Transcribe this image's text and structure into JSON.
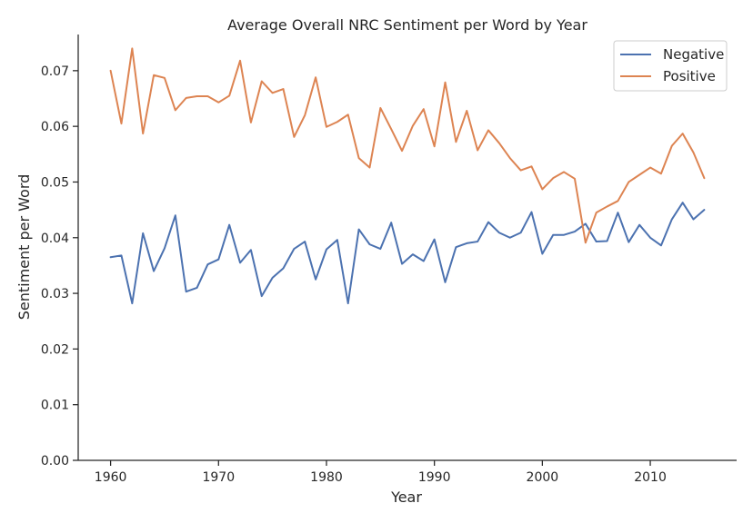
{
  "chart_data": {
    "type": "line",
    "title": "Average Overall NRC Sentiment per Word by Year",
    "xlabel": "Year",
    "ylabel": "Sentiment per Word",
    "xlim": [
      1957,
      2018
    ],
    "ylim": [
      0,
      0.0765
    ],
    "xticks": [
      1960,
      1970,
      1980,
      1990,
      2000,
      2010
    ],
    "yticks": [
      "0.00",
      "0.01",
      "0.02",
      "0.03",
      "0.04",
      "0.05",
      "0.06",
      "0.07"
    ],
    "grid": false,
    "legend_position": "top-right",
    "x": [
      1960,
      1961,
      1962,
      1963,
      1964,
      1965,
      1966,
      1967,
      1968,
      1969,
      1970,
      1971,
      1972,
      1973,
      1974,
      1975,
      1976,
      1977,
      1978,
      1979,
      1980,
      1981,
      1982,
      1983,
      1984,
      1985,
      1986,
      1987,
      1988,
      1989,
      1990,
      1991,
      1992,
      1993,
      1994,
      1995,
      1996,
      1997,
      1998,
      1999,
      2000,
      2001,
      2002,
      2003,
      2004,
      2005,
      2006,
      2007,
      2008,
      2009,
      2010,
      2011,
      2012,
      2013,
      2014,
      2015
    ],
    "series": [
      {
        "name": "Negative",
        "color": "#4c72b0",
        "values": [
          0.0365,
          0.0368,
          0.0282,
          0.0408,
          0.034,
          0.0381,
          0.044,
          0.0303,
          0.031,
          0.0352,
          0.0361,
          0.0423,
          0.0355,
          0.0378,
          0.0295,
          0.0328,
          0.0345,
          0.038,
          0.0393,
          0.0325,
          0.0379,
          0.0396,
          0.0282,
          0.0415,
          0.0388,
          0.038,
          0.0427,
          0.0353,
          0.037,
          0.0358,
          0.0397,
          0.032,
          0.0383,
          0.039,
          0.0393,
          0.0428,
          0.0409,
          0.04,
          0.0409,
          0.0446,
          0.0371,
          0.0405,
          0.0405,
          0.0411,
          0.0425,
          0.0393,
          0.0394,
          0.0445,
          0.0392,
          0.0423,
          0.04,
          0.0386,
          0.0433,
          0.0463,
          0.0433,
          0.045
        ]
      },
      {
        "name": "Positive",
        "color": "#dd8452",
        "values": [
          0.07,
          0.0605,
          0.074,
          0.0587,
          0.0692,
          0.0687,
          0.0629,
          0.0651,
          0.0654,
          0.0654,
          0.0643,
          0.0655,
          0.0718,
          0.0607,
          0.0681,
          0.066,
          0.0667,
          0.0581,
          0.062,
          0.0688,
          0.0599,
          0.0608,
          0.0621,
          0.0543,
          0.0526,
          0.0633,
          0.0595,
          0.0556,
          0.0601,
          0.0631,
          0.0564,
          0.0679,
          0.0572,
          0.0628,
          0.0557,
          0.0593,
          0.057,
          0.0543,
          0.0521,
          0.0528,
          0.0487,
          0.0507,
          0.0518,
          0.0506,
          0.0391,
          0.0445,
          0.0456,
          0.0466,
          0.05,
          0.0513,
          0.0526,
          0.0515,
          0.0565,
          0.0587,
          0.0553,
          0.0507
        ]
      }
    ]
  }
}
